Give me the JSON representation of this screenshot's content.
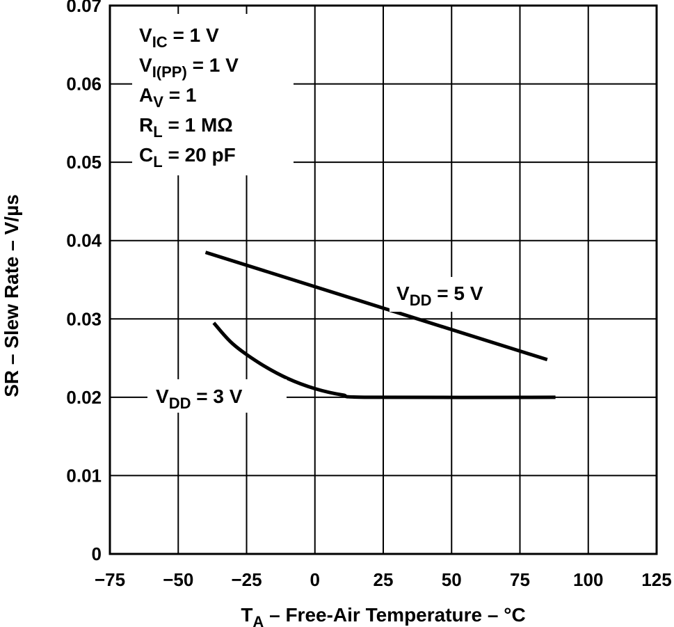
{
  "chart_data": {
    "type": "line",
    "title": "",
    "xlabel": "T_A – Free-Air Temperature – °C",
    "xlabel_main": "T",
    "xlabel_sub": "A",
    "xlabel_rest": " – Free-Air Temperature – °C",
    "ylabel": "SR – Slew Rate – V/µs",
    "xlim": [
      -75,
      125
    ],
    "ylim": [
      0,
      0.07
    ],
    "xticks": [
      -75,
      -50,
      -25,
      0,
      25,
      50,
      75,
      100,
      125
    ],
    "xtick_labels": [
      "−75",
      "−50",
      "−25",
      "0",
      "25",
      "50",
      "75",
      "100",
      "125"
    ],
    "yticks": [
      0,
      0.01,
      0.02,
      0.03,
      0.04,
      0.05,
      0.06,
      0.07
    ],
    "ytick_labels": [
      "0",
      "0.01",
      "0.02",
      "0.03",
      "0.04",
      "0.05",
      "0.06",
      "0.07"
    ],
    "grid": true,
    "series": [
      {
        "name": "VDD = 5 V",
        "label_main": "V",
        "label_sub": "DD",
        "label_rest": " = 5 V",
        "x": [
          -40,
          85
        ],
        "y": [
          0.0385,
          0.0248
        ]
      },
      {
        "name": "VDD = 3 V",
        "label_main": "V",
        "label_sub": "DD",
        "label_rest": " = 3 V",
        "x": [
          -37,
          -30,
          -20,
          -10,
          0,
          10,
          20,
          88
        ],
        "y": [
          0.0295,
          0.0268,
          0.0243,
          0.0224,
          0.0211,
          0.0203,
          0.02,
          0.02
        ]
      }
    ],
    "conditions": [
      {
        "main": "V",
        "sub": "IC",
        "rest": " = 1 V"
      },
      {
        "main": "V",
        "sub": "I(PP)",
        "rest": " = 1 V"
      },
      {
        "main": "A",
        "sub": "V",
        "rest": " = 1"
      },
      {
        "main": "R",
        "sub": "L",
        "rest": " = 1 MΩ"
      },
      {
        "main": "C",
        "sub": "L",
        "rest": " = 20 pF"
      }
    ]
  }
}
